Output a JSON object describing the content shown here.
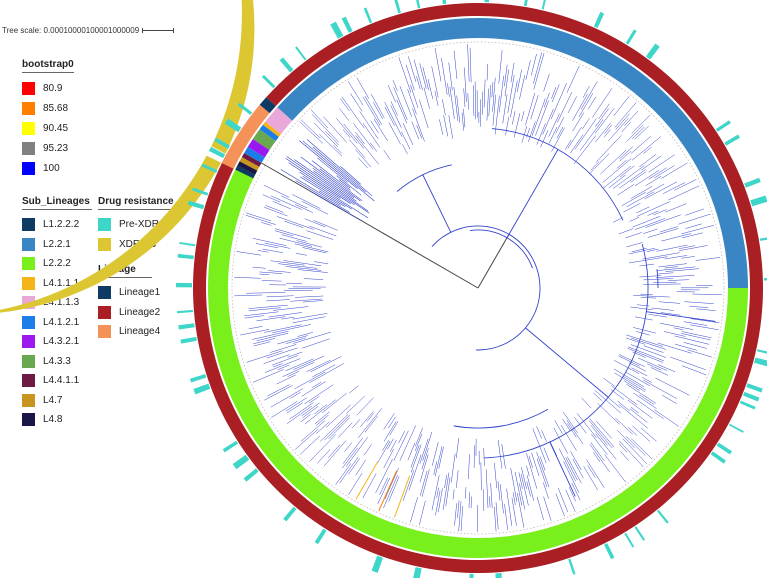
{
  "tree_scale": {
    "label": "Tree scale: 0.00010000100001000009"
  },
  "legends": {
    "bootstrap": {
      "title": "bootstrap0",
      "items": [
        {
          "label": "80.9",
          "color": "#ff0000"
        },
        {
          "label": "85.68",
          "color": "#ff8000"
        },
        {
          "label": "90.45",
          "color": "#ffff00"
        },
        {
          "label": "95.23",
          "color": "#808080"
        },
        {
          "label": "100",
          "color": "#0000ff"
        }
      ]
    },
    "sub_lineages": {
      "title": "Sub_Lineages",
      "items": [
        {
          "label": "L1.2.2.2",
          "color": "#0f3a63"
        },
        {
          "label": "L2.2.1",
          "color": "#3a86c4"
        },
        {
          "label": "L2.2.2",
          "color": "#79f01b"
        },
        {
          "label": "L4.1.1.1",
          "color": "#f5b418"
        },
        {
          "label": "L4.1.1.3",
          "color": "#e9a8d8"
        },
        {
          "label": "L4.1.2.1",
          "color": "#1a7de8"
        },
        {
          "label": "L4.3.2.1",
          "color": "#9b18ef"
        },
        {
          "label": "L4.3.3",
          "color": "#6aa84f"
        },
        {
          "label": "L4.4.1.1",
          "color": "#6e1a45"
        },
        {
          "label": "L4.7",
          "color": "#c8961e"
        },
        {
          "label": "L4.8",
          "color": "#1a1648"
        }
      ]
    },
    "drug_resistance": {
      "title": "Drug resistance",
      "items": [
        {
          "label": "Pre-XDR-TB",
          "color": "#3ed6c8"
        },
        {
          "label": "XDR-TB",
          "color": "#dcc733"
        }
      ]
    },
    "lineage": {
      "title": "Lineage",
      "items": [
        {
          "label": "Lineage1",
          "color": "#0f3a63"
        },
        {
          "label": "Lineage2",
          "color": "#aa1f23"
        },
        {
          "label": "Lineage4",
          "color": "#f5925a"
        }
      ]
    }
  },
  "colors": {
    "branch": "#3344cc",
    "root_branch": "#444444",
    "xdr": "#dcc733",
    "pre_xdr": "#3ed6c8",
    "lineage2": "#aa1f23",
    "lineage4": "#f5925a",
    "lineage1": "#0f3a63",
    "l221": "#3a86c4",
    "l222": "#79f01b",
    "l4113": "#e9a8d8"
  }
}
